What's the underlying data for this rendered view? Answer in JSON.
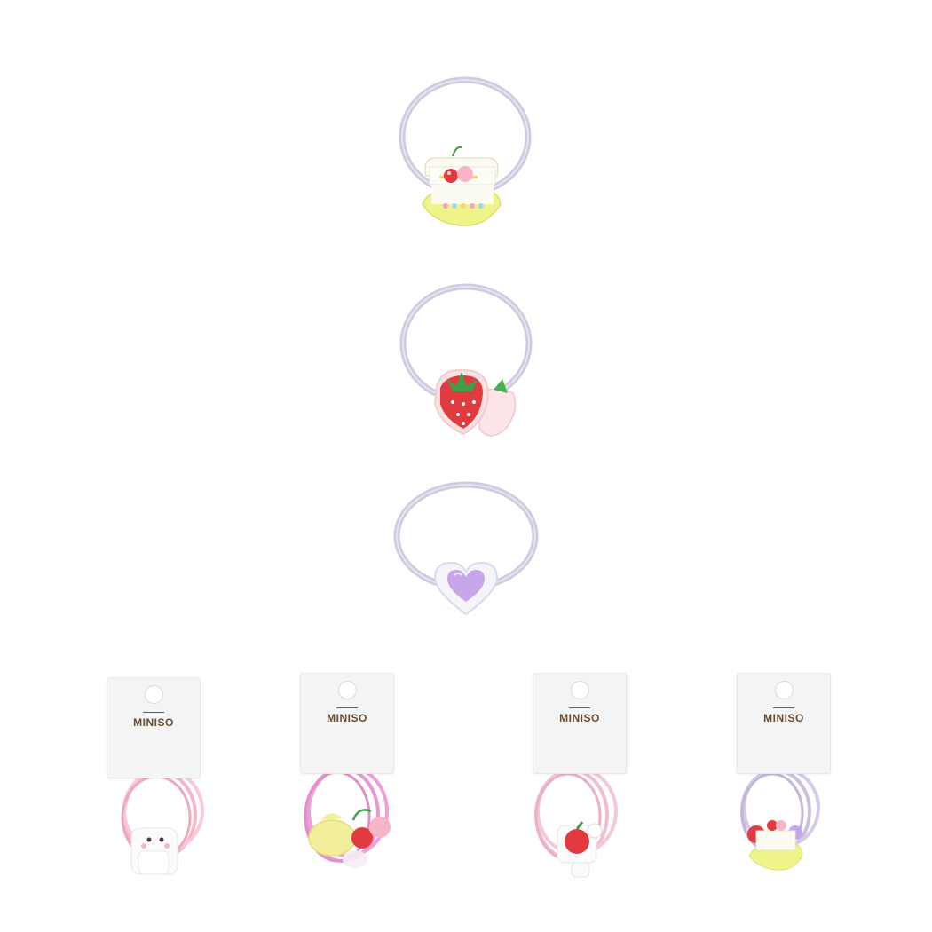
{
  "brand": {
    "logo_text": "MINISO",
    "color": "#6b4c2f"
  },
  "products": [
    {
      "name": "cherry-cake-hair-tie",
      "band_color": "#cfcadf"
    },
    {
      "name": "strawberry-hair-tie",
      "band_color": "#cfcadf"
    },
    {
      "name": "purple-heart-hair-tie",
      "band_color": "#cfcadf"
    }
  ],
  "packs": [
    {
      "name": "bunny-pack",
      "band_color": "#f3b6c6"
    },
    {
      "name": "lemon-cherry-pack",
      "band_color": "#e79bd0"
    },
    {
      "name": "apple-pack",
      "band_color": "#f0bdd2"
    },
    {
      "name": "cake-pack",
      "band_color": "#cbbfdf"
    }
  ],
  "accent_colors": {
    "red": "#e23b3f",
    "pink": "#f6b6c8",
    "yellow": "#f1ee9c",
    "purple": "#c9a5ea",
    "leaf": "#3aa34a"
  }
}
